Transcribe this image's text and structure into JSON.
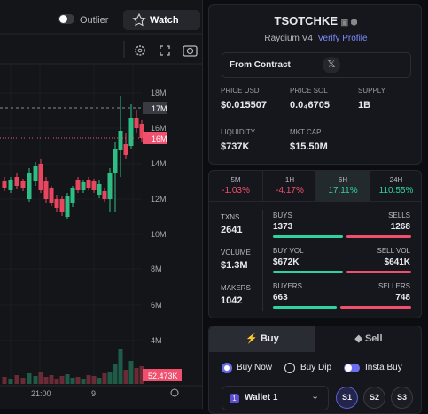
{
  "top_bar": {
    "outlier_toggle": "Outlier",
    "watch_button": "Watch"
  },
  "chart": {
    "y_axis_labels": [
      "18M",
      "16M",
      "14M",
      "12M",
      "10M",
      "8M",
      "6M",
      "4M"
    ],
    "price_tags": {
      "last": "17M",
      "current": "16M",
      "volume": "52.473K"
    },
    "x_axis_labels": [
      "21:00",
      "9"
    ]
  },
  "token": {
    "name": "TSOTCHKE",
    "dex": "Raydium V4",
    "verify_link": "Verify Profile",
    "contract_button": "From Contract",
    "stats": [
      {
        "label": "PRICE USD",
        "value": "$0.015507"
      },
      {
        "label": "PRICE SOL",
        "value": "0.0₄6705"
      },
      {
        "label": "SUPPLY",
        "value": "1B"
      },
      {
        "label": "LIQUIDITY",
        "value": "$737K"
      },
      {
        "label": "MKT CAP",
        "value": "$15.50M"
      }
    ]
  },
  "timeframes": [
    {
      "label": "5M",
      "change": "-1.03%"
    },
    {
      "label": "1H",
      "change": "-4.17%"
    },
    {
      "label": "6H",
      "change": "17.11%"
    },
    {
      "label": "24H",
      "change": "110.55%"
    }
  ],
  "activity": {
    "totals": [
      {
        "label": "TXNS",
        "value": "2641"
      },
      {
        "label": "VOLUME",
        "value": "$1.3M"
      },
      {
        "label": "MAKERS",
        "value": "1042"
      }
    ],
    "splits": [
      {
        "buy_label": "BUYS",
        "buy_value": "1373",
        "sell_label": "SELLS",
        "sell_value": "1268"
      },
      {
        "buy_label": "BUY VOL",
        "buy_value": "$672K",
        "sell_label": "SELL VOL",
        "sell_value": "$641K"
      },
      {
        "buy_label": "BUYERS",
        "buy_value": "663",
        "sell_label": "SELLERS",
        "sell_value": "748"
      }
    ]
  },
  "trade": {
    "tabs": [
      "Buy",
      "Sell"
    ],
    "order_types": [
      "Buy Now",
      "Buy Dip"
    ],
    "insta_toggle": "Insta Buy",
    "wallet_badge": "1",
    "wallet": "Wallet 1",
    "slots": [
      "S1",
      "S2",
      "S3"
    ]
  }
}
